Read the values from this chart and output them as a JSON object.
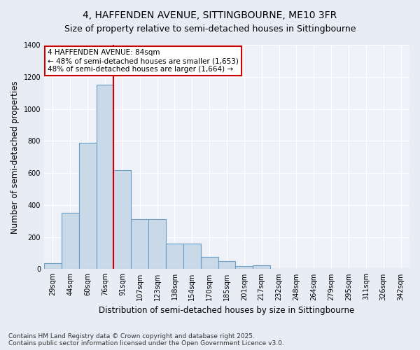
{
  "title": "4, HAFFENDEN AVENUE, SITTINGBOURNE, ME10 3FR",
  "subtitle": "Size of property relative to semi-detached houses in Sittingbourne",
  "xlabel": "Distribution of semi-detached houses by size in Sittingbourne",
  "ylabel": "Number of semi-detached properties",
  "categories": [
    "29sqm",
    "44sqm",
    "60sqm",
    "76sqm",
    "91sqm",
    "107sqm",
    "123sqm",
    "138sqm",
    "154sqm",
    "170sqm",
    "185sqm",
    "201sqm",
    "217sqm",
    "232sqm",
    "248sqm",
    "264sqm",
    "279sqm",
    "295sqm",
    "311sqm",
    "326sqm",
    "342sqm"
  ],
  "values": [
    35,
    350,
    790,
    1150,
    620,
    310,
    310,
    160,
    160,
    75,
    50,
    20,
    25,
    0,
    0,
    0,
    0,
    0,
    0,
    0,
    0
  ],
  "bar_color": "#c9d9e8",
  "bar_edge_color": "#6a9ec5",
  "vline_x": 3.5,
  "vline_color": "#cc0000",
  "annotation_text": "4 HAFFENDEN AVENUE: 84sqm\n← 48% of semi-detached houses are smaller (1,653)\n48% of semi-detached houses are larger (1,664) →",
  "annotation_box_color": "#cc0000",
  "ylim": [
    0,
    1400
  ],
  "yticks": [
    0,
    200,
    400,
    600,
    800,
    1000,
    1200,
    1400
  ],
  "footer_line1": "Contains HM Land Registry data © Crown copyright and database right 2025.",
  "footer_line2": "Contains public sector information licensed under the Open Government Licence v3.0.",
  "bg_color": "#e8edf5",
  "plot_bg_color": "#eef1f8",
  "grid_color": "#ffffff",
  "title_fontsize": 10,
  "subtitle_fontsize": 9,
  "axis_label_fontsize": 8.5,
  "tick_fontsize": 7,
  "ann_fontsize": 7.5,
  "footer_fontsize": 6.5
}
